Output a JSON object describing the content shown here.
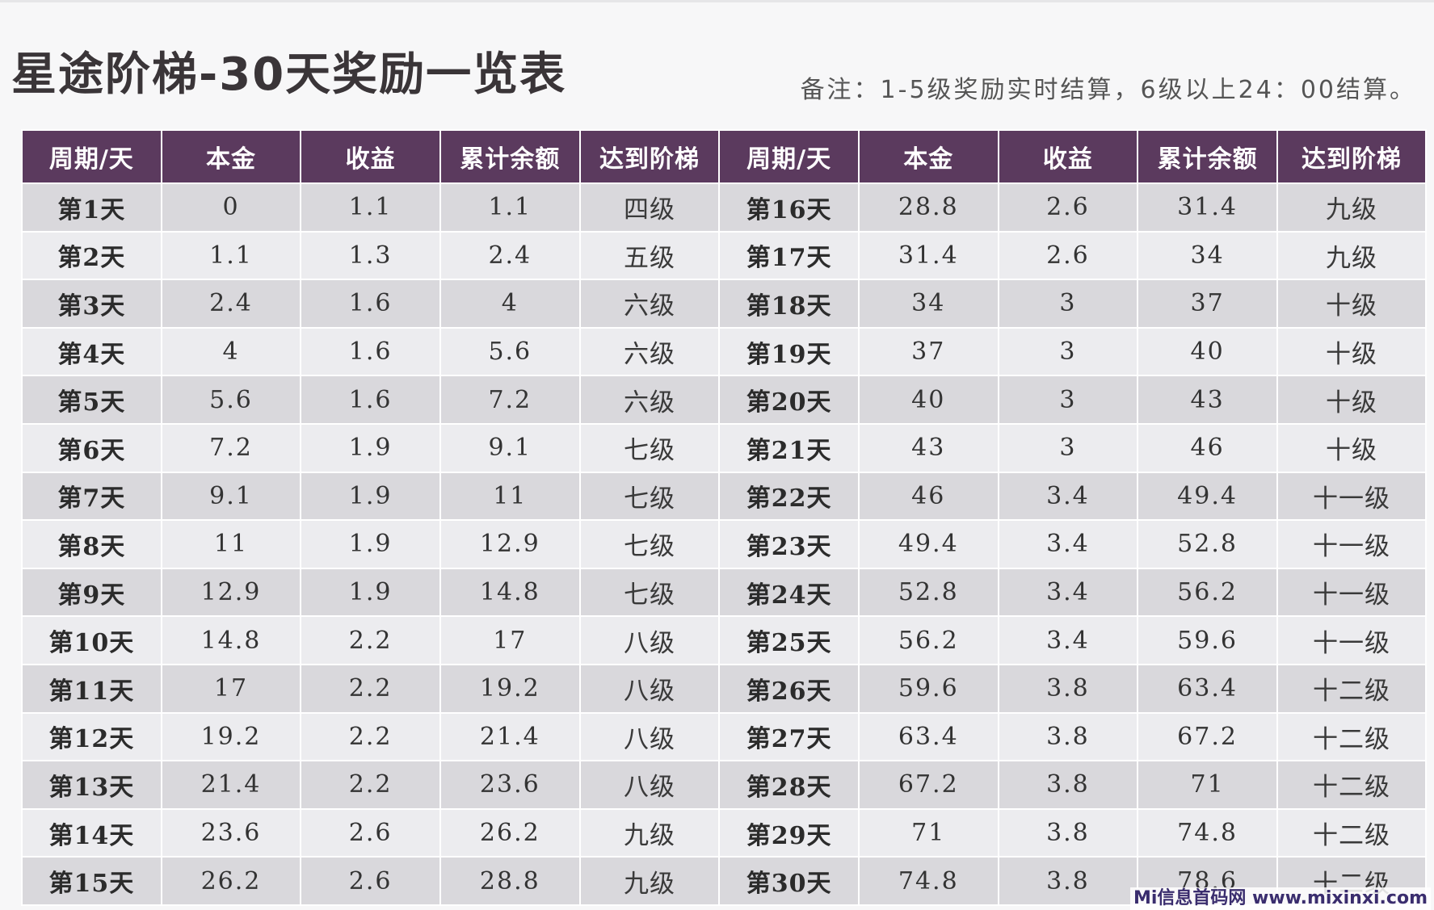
{
  "title": "星途阶梯-30天奖励一览表",
  "note": "备注：1-5级奖励实时结算，6级以上24：00结算。",
  "table": {
    "headers": [
      "周期/天",
      "本金",
      "收益",
      "累计余额",
      "达到阶梯",
      "周期/天",
      "本金",
      "收益",
      "累计余额",
      "达到阶梯"
    ],
    "rows": [
      [
        [
          "第1天",
          "0",
          "1.1",
          "1.1",
          "四级"
        ],
        [
          "第16天",
          "28.8",
          "2.6",
          "31.4",
          "九级"
        ]
      ],
      [
        [
          "第2天",
          "1.1",
          "1.3",
          "2.4",
          "五级"
        ],
        [
          "第17天",
          "31.4",
          "2.6",
          "34",
          "九级"
        ]
      ],
      [
        [
          "第3天",
          "2.4",
          "1.6",
          "4",
          "六级"
        ],
        [
          "第18天",
          "34",
          "3",
          "37",
          "十级"
        ]
      ],
      [
        [
          "第4天",
          "4",
          "1.6",
          "5.6",
          "六级"
        ],
        [
          "第19天",
          "37",
          "3",
          "40",
          "十级"
        ]
      ],
      [
        [
          "第5天",
          "5.6",
          "1.6",
          "7.2",
          "六级"
        ],
        [
          "第20天",
          "40",
          "3",
          "43",
          "十级"
        ]
      ],
      [
        [
          "第6天",
          "7.2",
          "1.9",
          "9.1",
          "七级"
        ],
        [
          "第21天",
          "43",
          "3",
          "46",
          "十级"
        ]
      ],
      [
        [
          "第7天",
          "9.1",
          "1.9",
          "11",
          "七级"
        ],
        [
          "第22天",
          "46",
          "3.4",
          "49.4",
          "十一级"
        ]
      ],
      [
        [
          "第8天",
          "11",
          "1.9",
          "12.9",
          "七级"
        ],
        [
          "第23天",
          "49.4",
          "3.4",
          "52.8",
          "十一级"
        ]
      ],
      [
        [
          "第9天",
          "12.9",
          "1.9",
          "14.8",
          "七级"
        ],
        [
          "第24天",
          "52.8",
          "3.4",
          "56.2",
          "十一级"
        ]
      ],
      [
        [
          "第10天",
          "14.8",
          "2.2",
          "17",
          "八级"
        ],
        [
          "第25天",
          "56.2",
          "3.4",
          "59.6",
          "十一级"
        ]
      ],
      [
        [
          "第11天",
          "17",
          "2.2",
          "19.2",
          "八级"
        ],
        [
          "第26天",
          "59.6",
          "3.8",
          "63.4",
          "十二级"
        ]
      ],
      [
        [
          "第12天",
          "19.2",
          "2.2",
          "21.4",
          "八级"
        ],
        [
          "第27天",
          "63.4",
          "3.8",
          "67.2",
          "十二级"
        ]
      ],
      [
        [
          "第13天",
          "21.4",
          "2.2",
          "23.6",
          "八级"
        ],
        [
          "第28天",
          "67.2",
          "3.8",
          "71",
          "十二级"
        ]
      ],
      [
        [
          "第14天",
          "23.6",
          "2.6",
          "26.2",
          "九级"
        ],
        [
          "第29天",
          "71",
          "3.8",
          "74.8",
          "十二级"
        ]
      ],
      [
        [
          "第15天",
          "26.2",
          "2.6",
          "28.8",
          "九级"
        ],
        [
          "第30天",
          "74.8",
          "3.8",
          "78.6",
          "十二级"
        ]
      ]
    ]
  },
  "watermark": "Mi信息首码网 www.mixinxi.com",
  "colors": {
    "header_bg": "#5b3a5e",
    "row_dark": "#d9d8dc",
    "row_light": "#ececef",
    "title_text": "#3a3538"
  }
}
